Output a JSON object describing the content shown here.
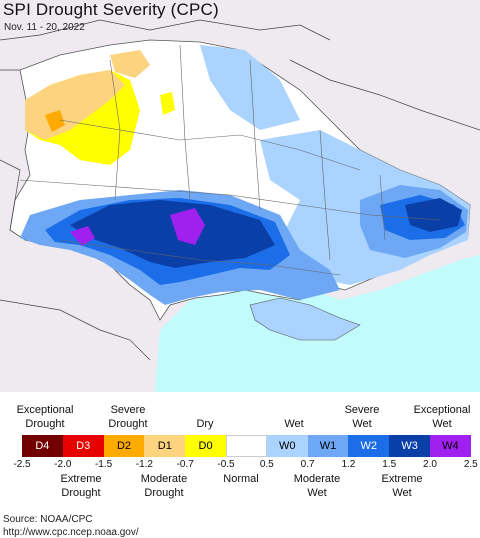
{
  "title": "SPI Drought Severity (CPC)",
  "date_range": "Nov. 11 - 20, 2022",
  "legend": {
    "top_labels": [
      "Exceptional\nDrought",
      "Severe\nDrought",
      "Dry",
      "Wet",
      "Severe\nWet",
      "Exceptional\nWet"
    ],
    "bottom_labels": [
      "Extreme\nDrought",
      "Moderate\nDrought",
      "Normal",
      "Moderate\nWet",
      "Extreme\nWet"
    ],
    "categories": [
      {
        "code": "D4",
        "color": "#730000",
        "text_color": "#ffffff"
      },
      {
        "code": "D3",
        "color": "#e60000",
        "text_color": "#ffffff"
      },
      {
        "code": "D2",
        "color": "#ffaa00",
        "text_color": "#000000"
      },
      {
        "code": "D1",
        "color": "#fcd37f",
        "text_color": "#000000"
      },
      {
        "code": "D0",
        "color": "#ffff00",
        "text_color": "#000000"
      },
      {
        "code": "",
        "color": "#ffffff",
        "text_color": "#000000"
      },
      {
        "code": "W0",
        "color": "#aad3ff",
        "text_color": "#000000"
      },
      {
        "code": "W1",
        "color": "#6ea8f5",
        "text_color": "#000000"
      },
      {
        "code": "W2",
        "color": "#1c6ee8",
        "text_color": "#ffffff"
      },
      {
        "code": "W3",
        "color": "#0a3fa8",
        "text_color": "#ffffff"
      },
      {
        "code": "W4",
        "color": "#a020f0",
        "text_color": "#000000"
      }
    ],
    "ticks": [
      "-2.5",
      "-2.0",
      "-1.5",
      "-1.2",
      "-0.7",
      "-0.5",
      "0.5",
      "0.7",
      "1.2",
      "1.5",
      "2.0",
      "2.5"
    ]
  },
  "source_label": "Source: NOAA/CPC",
  "source_url": "http://www.cpc.ncep.noaa.gov/"
}
